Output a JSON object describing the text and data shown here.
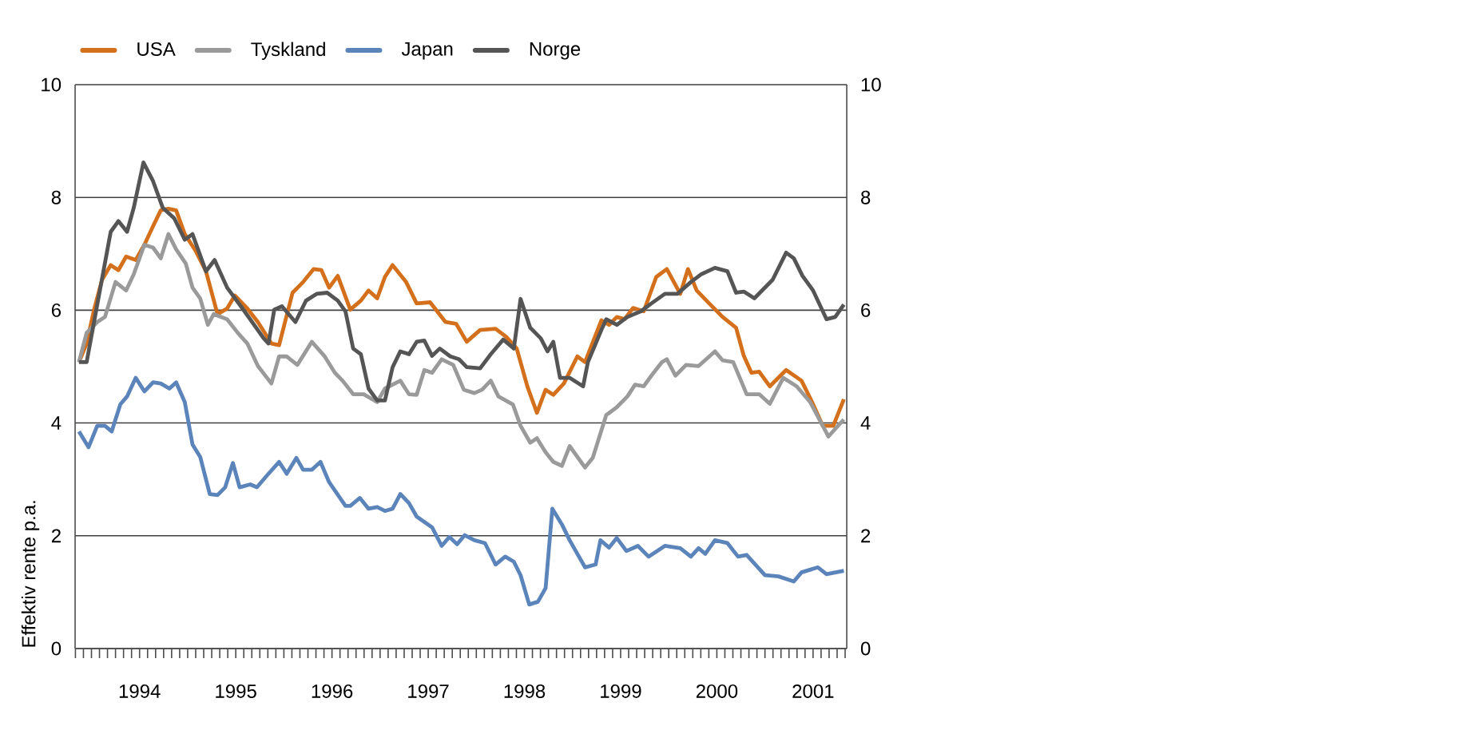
{
  "chart_data": {
    "type": "line",
    "ylabel": "Effektiv rente p.a.",
    "legend": "top left",
    "grid": "y",
    "xlim": [
      1993.83,
      2001.85
    ],
    "ylim": [
      0,
      10
    ],
    "yticks": [
      0,
      2,
      4,
      6,
      8,
      10
    ],
    "y2lim": [
      0,
      10
    ],
    "y2ticks": [
      0,
      2,
      4,
      6,
      8,
      10
    ],
    "xticks": [
      {
        "value": 1994,
        "label": null
      },
      {
        "value": 1994.5,
        "label": "1994"
      },
      {
        "value": 1995,
        "label": null
      },
      {
        "value": 1995.5,
        "label": "1995"
      },
      {
        "value": 1996,
        "label": null
      },
      {
        "value": 1996.5,
        "label": "1996"
      },
      {
        "value": 1997,
        "label": null
      },
      {
        "value": 1997.5,
        "label": "1997"
      },
      {
        "value": 1998,
        "label": null
      },
      {
        "value": 1998.5,
        "label": "1998"
      },
      {
        "value": 1999,
        "label": null
      },
      {
        "value": 1999.5,
        "label": "1999"
      },
      {
        "value": 2000,
        "label": null
      },
      {
        "value": 2000.5,
        "label": "2000"
      },
      {
        "value": 2001,
        "label": null
      },
      {
        "value": 2001.5,
        "label": "2001"
      },
      {
        "value": 2001.75,
        "label": null
      }
    ],
    "series": [
      {
        "name": "USA",
        "color": "#d4701c",
        "x": [
          1993.87,
          1993.95,
          1994.03,
          1994.11,
          1994.2,
          1994.28,
          1994.36,
          1994.46,
          1994.55,
          1994.64,
          1994.72,
          1994.8,
          1994.88,
          1994.97,
          1995.08,
          1995.19,
          1995.31,
          1995.41,
          1995.49,
          1995.62,
          1995.73,
          1995.87,
          1995.95,
          1996.09,
          1996.2,
          1996.31,
          1996.39,
          1996.47,
          1996.56,
          1996.69,
          1996.8,
          1996.88,
          1996.97,
          1997.05,
          1997.13,
          1997.27,
          1997.38,
          1997.52,
          1997.68,
          1997.79,
          1997.9,
          1998.04,
          1998.2,
          1998.31,
          1998.42,
          1998.53,
          1998.63,
          1998.72,
          1998.8,
          1998.91,
          1999.05,
          1999.13,
          1999.3,
          1999.38,
          1999.46,
          1999.54,
          1999.63,
          1999.74,
          1999.87,
          1999.98,
          2000.12,
          2000.2,
          2000.29,
          2000.42,
          2000.56,
          2000.7,
          2000.78,
          2000.86,
          2000.94,
          2001.05,
          2001.22,
          2001.38,
          2001.49,
          2001.6,
          2001.71,
          2001.82
        ],
        "values": [
          5.08,
          5.41,
          6.03,
          6.54,
          6.8,
          6.71,
          6.95,
          6.89,
          7.16,
          7.49,
          7.77,
          7.8,
          7.77,
          7.35,
          7.06,
          6.69,
          5.93,
          6.03,
          6.26,
          6.03,
          5.79,
          5.41,
          5.38,
          6.31,
          6.5,
          6.73,
          6.71,
          6.4,
          6.61,
          6.01,
          6.17,
          6.35,
          6.21,
          6.59,
          6.8,
          6.5,
          6.12,
          6.14,
          5.79,
          5.76,
          5.44,
          5.65,
          5.67,
          5.53,
          5.32,
          4.65,
          4.18,
          4.59,
          4.5,
          4.7,
          5.18,
          5.08,
          5.82,
          5.74,
          5.88,
          5.84,
          6.04,
          5.98,
          6.59,
          6.73,
          6.29,
          6.73,
          6.35,
          6.12,
          5.88,
          5.69,
          5.19,
          4.89,
          4.91,
          4.65,
          4.94,
          4.75,
          4.37,
          3.95,
          3.95,
          4.42
        ]
      },
      {
        "name": "Tyskland",
        "color": "#9a9a9a",
        "x": [
          1993.87,
          1993.95,
          1994.06,
          1994.14,
          1994.25,
          1994.36,
          1994.44,
          1994.55,
          1994.64,
          1994.72,
          1994.8,
          1994.88,
          1994.98,
          1995.05,
          1995.13,
          1995.21,
          1995.27,
          1995.41,
          1995.52,
          1995.62,
          1995.73,
          1995.87,
          1995.95,
          1996.03,
          1996.14,
          1996.29,
          1996.42,
          1996.53,
          1996.61,
          1996.72,
          1996.83,
          1996.97,
          1997.05,
          1997.21,
          1997.3,
          1997.38,
          1997.46,
          1997.54,
          1997.64,
          1997.76,
          1997.87,
          1997.98,
          1998.06,
          1998.15,
          1998.23,
          1998.38,
          1998.46,
          1998.56,
          1998.63,
          1998.72,
          1998.8,
          1998.89,
          1998.97,
          1999.13,
          1999.21,
          1999.35,
          1999.46,
          1999.57,
          1999.65,
          1999.74,
          1999.82,
          1999.93,
          1999.98,
          2000.07,
          2000.18,
          2000.31,
          2000.48,
          2000.56,
          2000.67,
          2000.81,
          2000.94,
          2001.05,
          2001.19,
          2001.33,
          2001.47,
          2001.66,
          2001.77,
          2001.82
        ],
        "values": [
          5.08,
          5.6,
          5.79,
          5.88,
          6.5,
          6.35,
          6.64,
          7.16,
          7.11,
          6.92,
          7.35,
          7.08,
          6.83,
          6.4,
          6.21,
          5.74,
          5.93,
          5.84,
          5.6,
          5.41,
          5.01,
          4.7,
          5.18,
          5.18,
          5.03,
          5.44,
          5.19,
          4.89,
          4.75,
          4.51,
          4.51,
          4.37,
          4.61,
          4.75,
          4.51,
          4.5,
          4.94,
          4.89,
          5.13,
          5.03,
          4.59,
          4.53,
          4.59,
          4.75,
          4.47,
          4.33,
          3.95,
          3.65,
          3.73,
          3.48,
          3.31,
          3.24,
          3.59,
          3.21,
          3.38,
          4.14,
          4.28,
          4.47,
          4.68,
          4.65,
          4.84,
          5.08,
          5.13,
          4.84,
          5.03,
          5.01,
          5.27,
          5.11,
          5.08,
          4.51,
          4.51,
          4.34,
          4.8,
          4.65,
          4.37,
          3.76,
          3.97,
          4.06
        ]
      },
      {
        "name": "Japan",
        "color": "#5b84bb",
        "x": [
          1993.87,
          1993.97,
          1994.06,
          1994.14,
          1994.21,
          1994.3,
          1994.37,
          1994.46,
          1994.55,
          1994.64,
          1994.72,
          1994.81,
          1994.88,
          1994.97,
          1995.05,
          1995.13,
          1995.23,
          1995.31,
          1995.39,
          1995.47,
          1995.54,
          1995.65,
          1995.72,
          1995.83,
          1995.95,
          1996.03,
          1996.13,
          1996.2,
          1996.29,
          1996.38,
          1996.47,
          1996.64,
          1996.69,
          1996.79,
          1996.88,
          1996.97,
          1997.05,
          1997.13,
          1997.21,
          1997.3,
          1997.38,
          1997.54,
          1997.64,
          1997.72,
          1997.8,
          1997.88,
          1997.98,
          1998.09,
          1998.2,
          1998.3,
          1998.39,
          1998.46,
          1998.55,
          1998.64,
          1998.72,
          1998.79,
          1998.89,
          1998.97,
          1999.05,
          1999.13,
          1999.24,
          1999.29,
          1999.38,
          1999.46,
          1999.56,
          1999.68,
          1999.79,
          1999.96,
          2000.12,
          2000.23,
          2000.31,
          2000.38,
          2000.48,
          2000.61,
          2000.72,
          2000.81,
          2001.0,
          2001.14,
          2001.3,
          2001.38,
          2001.55,
          2001.64,
          2001.82
        ],
        "values": [
          3.85,
          3.57,
          3.95,
          3.95,
          3.85,
          4.33,
          4.47,
          4.8,
          4.56,
          4.72,
          4.7,
          4.61,
          4.72,
          4.37,
          3.62,
          3.4,
          2.74,
          2.72,
          2.86,
          3.29,
          2.86,
          2.91,
          2.86,
          3.08,
          3.31,
          3.1,
          3.38,
          3.17,
          3.17,
          3.31,
          2.95,
          2.53,
          2.53,
          2.67,
          2.48,
          2.51,
          2.44,
          2.48,
          2.74,
          2.58,
          2.34,
          2.15,
          1.82,
          1.98,
          1.85,
          2.01,
          1.92,
          1.87,
          1.49,
          1.63,
          1.54,
          1.3,
          0.78,
          0.83,
          1.07,
          2.48,
          2.2,
          1.92,
          1.68,
          1.44,
          1.49,
          1.92,
          1.79,
          1.96,
          1.73,
          1.82,
          1.63,
          1.82,
          1.78,
          1.63,
          1.78,
          1.68,
          1.92,
          1.87,
          1.63,
          1.66,
          1.3,
          1.28,
          1.19,
          1.35,
          1.44,
          1.32,
          1.38
        ]
      },
      {
        "name": "Norge",
        "color": "#555555",
        "x": [
          1993.87,
          1993.95,
          1994.2,
          1994.28,
          1994.37,
          1994.44,
          1994.54,
          1994.64,
          1994.74,
          1994.86,
          1994.97,
          1995.05,
          1995.19,
          1995.28,
          1995.41,
          1995.57,
          1995.79,
          1995.84,
          1995.9,
          1995.98,
          1996.12,
          1996.23,
          1996.34,
          1996.45,
          1996.56,
          1996.64,
          1996.72,
          1996.8,
          1996.88,
          1996.97,
          1997.05,
          1997.13,
          1997.21,
          1997.3,
          1997.38,
          1997.46,
          1997.54,
          1997.62,
          1997.73,
          1997.82,
          1997.9,
          1998.04,
          1998.15,
          1998.28,
          1998.39,
          1998.46,
          1998.56,
          1998.67,
          1998.74,
          1998.8,
          1998.87,
          1998.97,
          1999.11,
          1999.16,
          1999.3,
          1999.35,
          1999.46,
          1999.57,
          1999.71,
          1999.82,
          1999.96,
          2000.09,
          2000.23,
          2000.34,
          2000.48,
          2000.61,
          2000.7,
          2000.78,
          2000.89,
          2001.08,
          2001.22,
          2001.3,
          2001.39,
          2001.5,
          2001.64,
          2001.73,
          2001.82
        ],
        "values": [
          5.08,
          5.08,
          7.39,
          7.58,
          7.39,
          7.82,
          8.62,
          8.29,
          7.82,
          7.63,
          7.25,
          7.35,
          6.69,
          6.89,
          6.4,
          6.03,
          5.5,
          5.41,
          6.01,
          6.07,
          5.79,
          6.17,
          6.29,
          6.31,
          6.17,
          5.98,
          5.32,
          5.22,
          4.61,
          4.4,
          4.4,
          4.99,
          5.27,
          5.22,
          5.44,
          5.46,
          5.19,
          5.32,
          5.18,
          5.13,
          4.99,
          4.97,
          5.22,
          5.48,
          5.32,
          6.2,
          5.69,
          5.5,
          5.27,
          5.44,
          4.8,
          4.8,
          4.65,
          5.08,
          5.65,
          5.84,
          5.74,
          5.88,
          5.98,
          6.12,
          6.29,
          6.29,
          6.5,
          6.64,
          6.75,
          6.69,
          6.31,
          6.33,
          6.21,
          6.54,
          7.02,
          6.92,
          6.61,
          6.35,
          5.84,
          5.88,
          6.1
        ]
      }
    ]
  }
}
